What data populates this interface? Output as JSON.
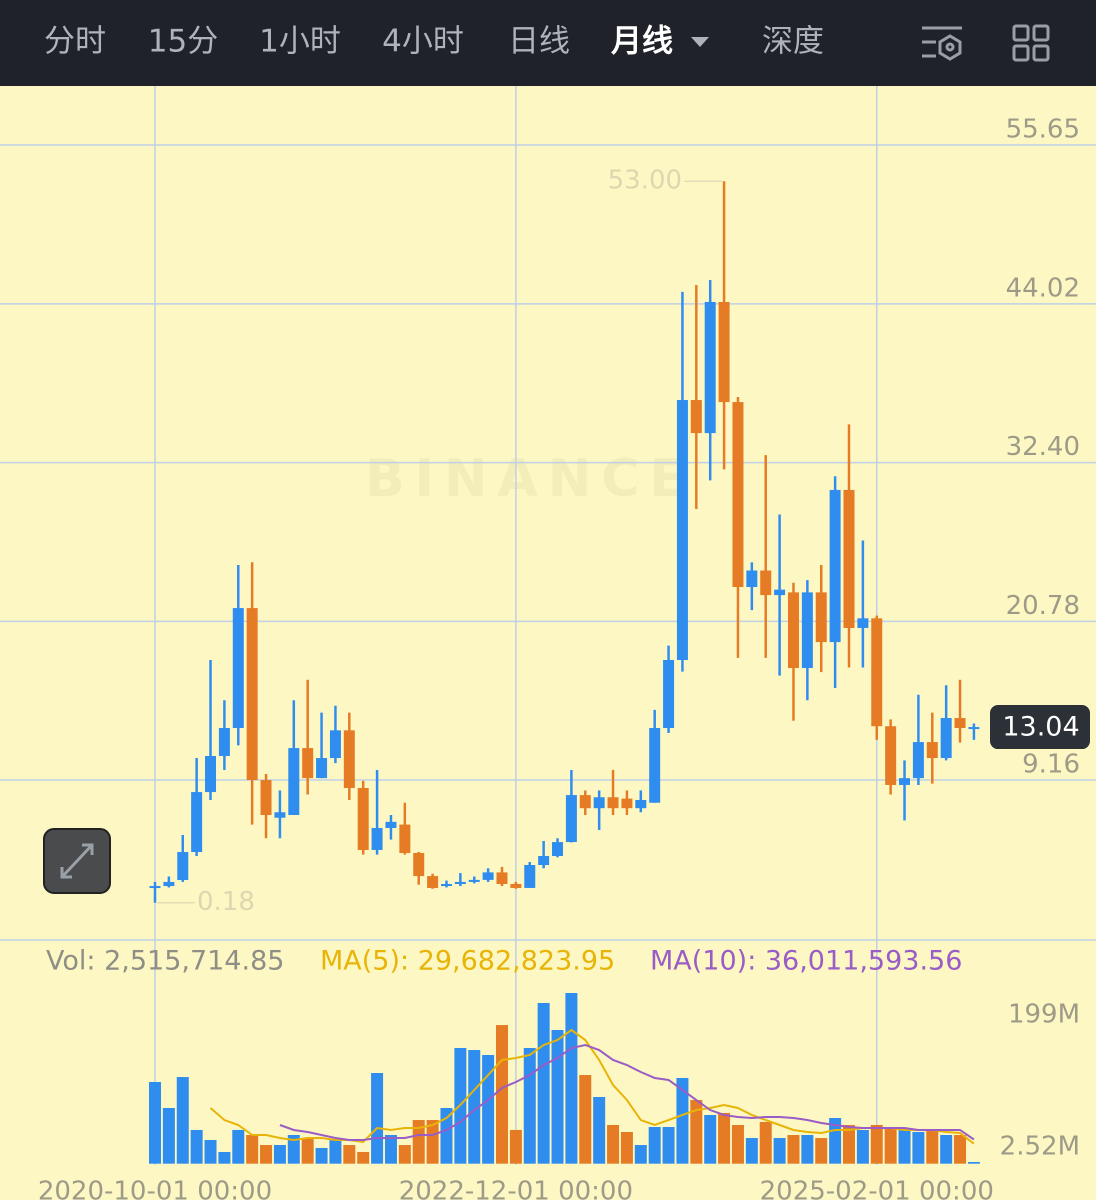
{
  "toolbar": {
    "tabs": [
      "分时",
      "15分",
      "1小时",
      "4小时",
      "日线",
      "月线",
      "深度"
    ],
    "selected": 5
  },
  "watermark": "BINANCE",
  "chart_data": [
    {
      "type": "candlestick",
      "categories": [
        "2020-10-01 00:00",
        null,
        null,
        null,
        null,
        null,
        null,
        null,
        null,
        null,
        null,
        null,
        null,
        null,
        null,
        null,
        null,
        null,
        null,
        null,
        null,
        null,
        null,
        null,
        null,
        null,
        "2022-12-01 00:00",
        null,
        null,
        null,
        null,
        null,
        null,
        null,
        null,
        null,
        null,
        null,
        null,
        null,
        null,
        null,
        null,
        null,
        null,
        null,
        null,
        null,
        null,
        null,
        null,
        null,
        "2025-02-01 00:00",
        null,
        null,
        null,
        null,
        null,
        null,
        null
      ],
      "open": [
        1.3,
        1.4,
        1.84,
        3.89,
        8.28,
        10.92,
        12.97,
        21.75,
        9.16,
        6.4,
        6.6,
        11.5,
        9.3,
        10.77,
        12.8,
        8.58,
        4.04,
        5.65,
        5.9,
        3.82,
        2.13,
        1.4,
        1.55,
        1.7,
        1.85,
        2.4,
        1.55,
        1.26,
        2.94,
        3.6,
        4.62,
        8.06,
        7.1,
        7.9,
        7.8,
        7.1,
        7.5,
        12.97,
        17.95,
        36.98,
        34.56,
        44.16,
        36.83,
        23.29,
        24.5,
        22.7,
        22.9,
        17.36,
        22.9,
        19.26,
        30.4,
        20.29,
        21.0,
        13.1,
        8.8,
        9.3,
        11.94,
        10.77,
        13.7,
        12.97
      ],
      "high": [
        1.7,
        2.1,
        5.14,
        10.77,
        17.95,
        15.0,
        24.9,
        25.1,
        9.6,
        8.4,
        15.0,
        16.5,
        14.1,
        14.6,
        14.1,
        9.1,
        9.9,
        6.6,
        7.5,
        3.9,
        2.3,
        1.8,
        2.35,
        2.1,
        2.7,
        2.8,
        1.7,
        3.16,
        4.7,
        4.9,
        9.9,
        8.4,
        8.4,
        9.9,
        8.4,
        8.4,
        14.3,
        19.0,
        44.9,
        45.4,
        45.77,
        53.0,
        37.2,
        25.1,
        32.95,
        28.6,
        23.6,
        23.8,
        24.9,
        31.4,
        35.2,
        26.7,
        21.2,
        13.6,
        10.6,
        15.4,
        14.1,
        16.1,
        16.5,
        13.3
      ],
      "low": [
        0.18,
        1.3,
        1.7,
        3.6,
        7.7,
        9.9,
        11.7,
        5.9,
        4.9,
        4.9,
        6.6,
        8.1,
        9.3,
        10.4,
        7.7,
        3.7,
        3.7,
        4.8,
        3.7,
        1.5,
        1.2,
        1.3,
        1.4,
        1.6,
        1.7,
        1.4,
        1.2,
        1.26,
        2.7,
        3.5,
        4.6,
        6.6,
        5.5,
        6.6,
        6.6,
        6.8,
        7.5,
        12.6,
        17.1,
        29.0,
        31.1,
        31.9,
        18.1,
        21.6,
        18.1,
        16.8,
        13.5,
        15.0,
        17.06,
        15.9,
        17.4,
        17.4,
        12.1,
        8.1,
        6.2,
        8.8,
        8.9,
        10.6,
        11.9,
        12.1
      ],
      "close": [
        1.4,
        1.7,
        3.89,
        8.28,
        10.92,
        12.97,
        21.75,
        9.16,
        6.6,
        6.8,
        11.5,
        9.3,
        10.77,
        12.8,
        8.58,
        4.04,
        5.65,
        6.1,
        3.82,
        2.13,
        1.26,
        1.55,
        1.7,
        1.85,
        2.4,
        1.55,
        1.26,
        2.94,
        3.6,
        4.62,
        8.06,
        7.1,
        7.9,
        7.1,
        7.1,
        7.7,
        12.97,
        17.95,
        36.98,
        34.56,
        44.16,
        36.83,
        23.29,
        24.5,
        22.7,
        23.1,
        17.36,
        22.9,
        19.26,
        30.4,
        20.29,
        21.0,
        13.1,
        8.8,
        9.3,
        11.94,
        10.77,
        13.7,
        12.97,
        13.04
      ],
      "up_color": "#2f8df0",
      "down_color": "#e57c25",
      "ylim": [
        -2.55,
        59.97
      ],
      "yticks": [
        55.65,
        44.02,
        {
          "value": 32.4,
          "label": "32.40"
        },
        20.78,
        9.16
      ],
      "grid": true,
      "max_label": {
        "value": 53.0,
        "label": "53.00"
      },
      "min_label": 0.18,
      "last_price": 13.04
    },
    {
      "type": "bar",
      "series": [
        {
          "name": "Vol: 2,515,714.85",
          "color": "#8e8e86",
          "values": [
            121.6,
            82.9,
            129.0,
            50.2,
            35.3,
            17.4,
            50.2,
            42.7,
            27.8,
            27.8,
            42.7,
            38.2,
            23.4,
            35.3,
            27.8,
            17.4,
            135.0,
            42.7,
            27.8,
            65.0,
            65.0,
            82.9,
            172.2,
            169.2,
            161.8,
            206.4,
            50.2,
            172.2,
            239.2,
            199.0,
            254.1,
            132.0,
            99.3,
            57.6,
            47.2,
            27.8,
            54.6,
            54.6,
            127.6,
            94.8,
            72.5,
            75.5,
            57.6,
            38.2,
            62.1,
            38.2,
            42.7,
            42.7,
            38.2,
            68.0,
            57.6,
            50.2,
            57.6,
            53.1,
            50.2,
            47.2,
            50.2,
            42.7,
            42.7,
            2.52
          ]
        },
        {
          "name": "MA(5): 29,682,823.95",
          "color": "#e7b407",
          "values": [
            null,
            null,
            null,
            null,
            82.9,
            65.0,
            57.6,
            42.7,
            42.7,
            38.2,
            35.3,
            38.2,
            38.2,
            35.3,
            35.3,
            32.3,
            53.1,
            50.2,
            53.1,
            53.1,
            57.6,
            68.0,
            87.4,
            109.7,
            132.0,
            154.4,
            157.3,
            161.8,
            176.7,
            184.1,
            199.0,
            184.1,
            154.4,
            117.1,
            94.8,
            65.0,
            57.6,
            65.0,
            72.5,
            79.9,
            82.9,
            87.4,
            82.9,
            72.5,
            65.0,
            57.6,
            50.2,
            47.2,
            45.7,
            50.2,
            50.2,
            53.1,
            53.1,
            53.1,
            50.2,
            50.2,
            50.2,
            47.2,
            45.7,
            29.68
          ]
        },
        {
          "name": "MA(10): 36,011,593.56",
          "color": "#9a5cc6",
          "values": [
            null,
            null,
            null,
            null,
            null,
            null,
            null,
            null,
            null,
            57.6,
            50.2,
            47.2,
            42.7,
            38.2,
            35.3,
            35.3,
            38.2,
            38.2,
            38.2,
            42.7,
            42.7,
            50.2,
            62.1,
            79.9,
            94.8,
            112.7,
            121.6,
            132.0,
            146.9,
            157.3,
            172.2,
            176.7,
            169.2,
            154.4,
            146.9,
            136.5,
            127.6,
            124.6,
            109.7,
            94.8,
            79.9,
            72.5,
            69.5,
            68.0,
            69.5,
            69.5,
            68.0,
            65.0,
            60.6,
            57.6,
            54.6,
            53.1,
            53.1,
            53.1,
            53.1,
            50.2,
            50.2,
            50.2,
            50.2,
            36.01
          ]
        }
      ],
      "ylim": [
        -1.95,
        266
      ],
      "yticks": [
        {
          "value": 199,
          "label": "199M"
        },
        {
          "value": 2.52,
          "label": "2.52M"
        }
      ],
      "grid": false
    }
  ]
}
